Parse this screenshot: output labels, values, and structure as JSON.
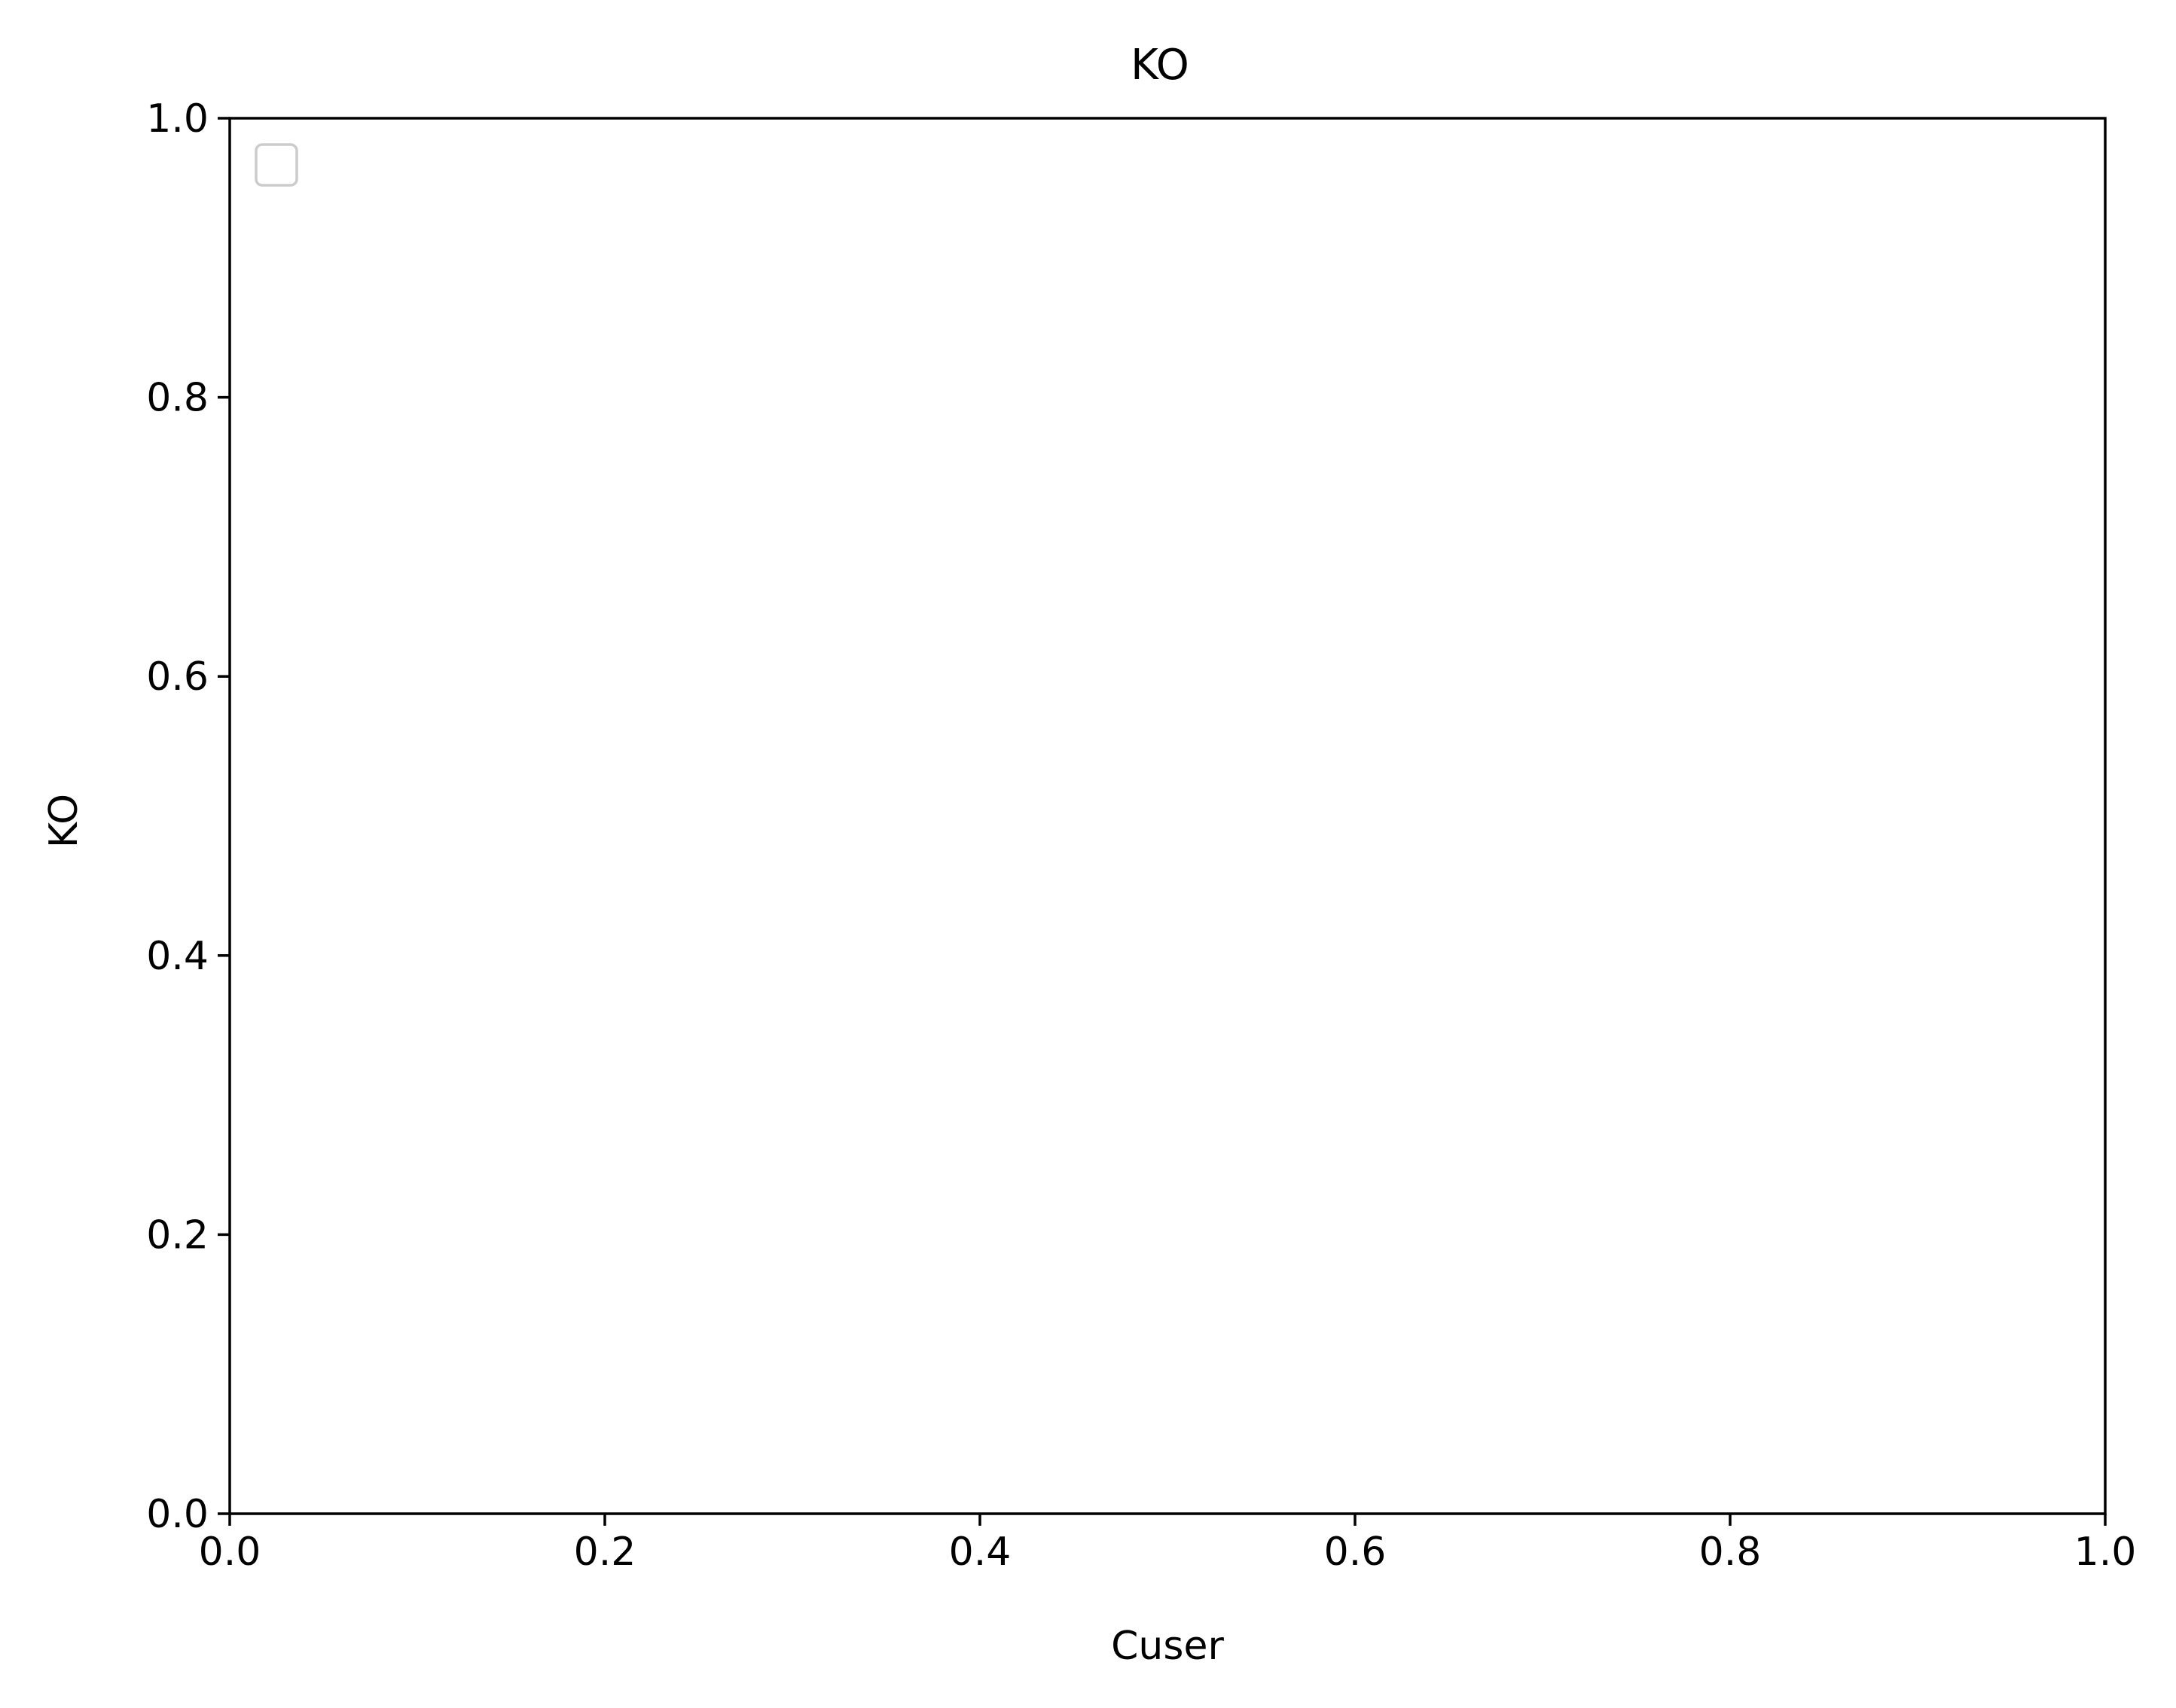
{
  "chart_data": {
    "type": "scatter",
    "title": "KO",
    "xlabel": "Cuser",
    "ylabel": "KO",
    "xlim": [
      0.0,
      1.0
    ],
    "ylim": [
      0.0,
      1.0
    ],
    "x_ticks": [
      "0.0",
      "0.2",
      "0.4",
      "0.6",
      "0.8",
      "1.0"
    ],
    "y_ticks": [
      "0.0",
      "0.2",
      "0.4",
      "0.6",
      "0.8",
      "1.0"
    ],
    "series": [],
    "grid": false,
    "legend": {
      "placement": "upper-left",
      "entries": []
    },
    "colors": {
      "axes": "#000000",
      "legend_border": "#cccccc",
      "background": "#ffffff"
    }
  }
}
